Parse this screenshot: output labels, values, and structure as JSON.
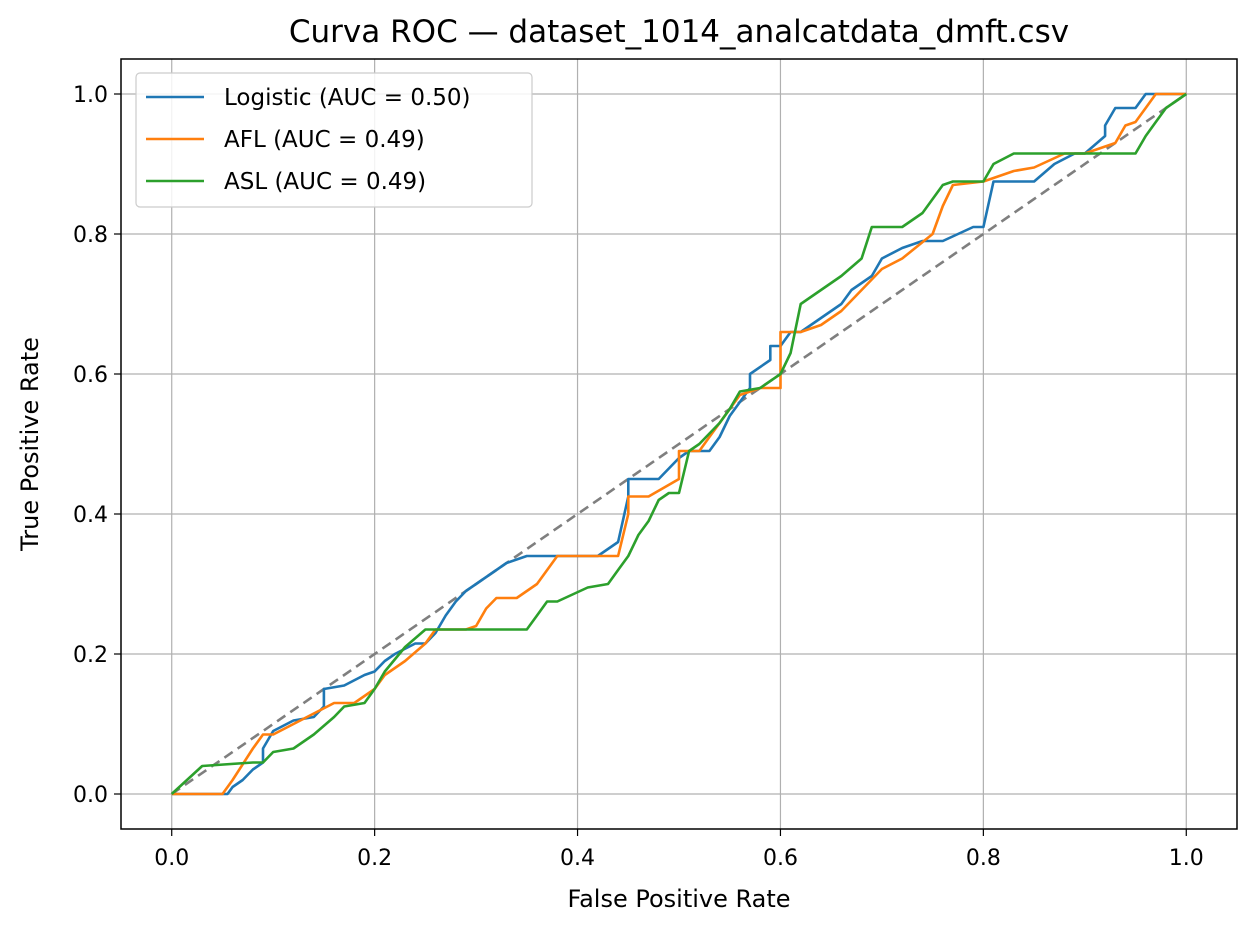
{
  "chart_data": {
    "type": "line",
    "title": "Curva ROC — dataset_1014_analcatdata_dmft.csv",
    "xlabel": "False Positive Rate",
    "ylabel": "True Positive Rate",
    "xlim": [
      -0.05,
      1.05
    ],
    "ylim": [
      -0.05,
      1.05
    ],
    "xticks": [
      "0.0",
      "0.2",
      "0.4",
      "0.6",
      "0.8",
      "1.0"
    ],
    "yticks": [
      "0.0",
      "0.2",
      "0.4",
      "0.6",
      "0.8",
      "1.0"
    ],
    "grid": true,
    "legend_position": "upper-left",
    "diagonal": {
      "x": [
        0,
        1
      ],
      "y": [
        0,
        1
      ],
      "style": "dashed",
      "color": "#7f7f7f"
    },
    "series": [
      {
        "name": "Logistic (AUC = 0.50)",
        "color": "#1f77b4",
        "x": [
          0,
          0.055,
          0.06,
          0.07,
          0.08,
          0.09,
          0.09,
          0.1,
          0.12,
          0.14,
          0.15,
          0.15,
          0.17,
          0.19,
          0.2,
          0.21,
          0.22,
          0.24,
          0.25,
          0.26,
          0.27,
          0.28,
          0.29,
          0.3,
          0.32,
          0.33,
          0.35,
          0.38,
          0.42,
          0.44,
          0.45,
          0.45,
          0.48,
          0.5,
          0.51,
          0.53,
          0.54,
          0.55,
          0.56,
          0.57,
          0.57,
          0.59,
          0.59,
          0.6,
          0.61,
          0.62,
          0.64,
          0.66,
          0.67,
          0.69,
          0.7,
          0.72,
          0.74,
          0.76,
          0.79,
          0.8,
          0.81,
          0.85,
          0.87,
          0.89,
          0.9,
          0.92,
          0.92,
          0.93,
          0.95,
          0.96,
          0.97,
          0.98,
          1.0
        ],
        "y": [
          0,
          0,
          0.01,
          0.02,
          0.035,
          0.045,
          0.065,
          0.09,
          0.105,
          0.11,
          0.125,
          0.15,
          0.155,
          0.17,
          0.175,
          0.19,
          0.2,
          0.215,
          0.215,
          0.23,
          0.255,
          0.275,
          0.29,
          0.3,
          0.32,
          0.33,
          0.34,
          0.34,
          0.34,
          0.36,
          0.425,
          0.45,
          0.45,
          0.48,
          0.49,
          0.49,
          0.51,
          0.54,
          0.56,
          0.58,
          0.6,
          0.62,
          0.64,
          0.64,
          0.66,
          0.66,
          0.68,
          0.7,
          0.72,
          0.74,
          0.765,
          0.78,
          0.79,
          0.79,
          0.81,
          0.81,
          0.875,
          0.875,
          0.9,
          0.915,
          0.915,
          0.94,
          0.955,
          0.98,
          0.98,
          1.0,
          1.0,
          1.0,
          1.0
        ]
      },
      {
        "name": "AFL (AUC = 0.49)",
        "color": "#ff7f0e",
        "x": [
          0,
          0.05,
          0.06,
          0.08,
          0.09,
          0.1,
          0.12,
          0.14,
          0.16,
          0.18,
          0.2,
          0.21,
          0.23,
          0.25,
          0.26,
          0.29,
          0.3,
          0.31,
          0.32,
          0.34,
          0.36,
          0.38,
          0.44,
          0.45,
          0.45,
          0.47,
          0.5,
          0.5,
          0.52,
          0.53,
          0.54,
          0.56,
          0.58,
          0.6,
          0.6,
          0.62,
          0.64,
          0.66,
          0.68,
          0.7,
          0.72,
          0.75,
          0.76,
          0.77,
          0.8,
          0.83,
          0.85,
          0.88,
          0.9,
          0.93,
          0.94,
          0.95,
          0.96,
          0.97,
          1.0
        ],
        "y": [
          0,
          0,
          0.02,
          0.065,
          0.085,
          0.085,
          0.1,
          0.115,
          0.13,
          0.13,
          0.15,
          0.17,
          0.19,
          0.215,
          0.235,
          0.235,
          0.24,
          0.265,
          0.28,
          0.28,
          0.3,
          0.34,
          0.34,
          0.4,
          0.425,
          0.425,
          0.45,
          0.49,
          0.49,
          0.51,
          0.53,
          0.57,
          0.58,
          0.58,
          0.66,
          0.66,
          0.67,
          0.69,
          0.72,
          0.75,
          0.765,
          0.8,
          0.84,
          0.87,
          0.875,
          0.89,
          0.895,
          0.915,
          0.915,
          0.93,
          0.955,
          0.96,
          0.98,
          1.0,
          1.0
        ]
      },
      {
        "name": "ASL (AUC = 0.49)",
        "color": "#2ca02c",
        "x": [
          0,
          0.03,
          0.08,
          0.09,
          0.1,
          0.12,
          0.14,
          0.16,
          0.17,
          0.19,
          0.2,
          0.21,
          0.23,
          0.25,
          0.27,
          0.3,
          0.35,
          0.36,
          0.37,
          0.38,
          0.41,
          0.43,
          0.44,
          0.45,
          0.46,
          0.47,
          0.48,
          0.49,
          0.5,
          0.51,
          0.52,
          0.54,
          0.55,
          0.56,
          0.58,
          0.6,
          0.61,
          0.62,
          0.64,
          0.66,
          0.68,
          0.69,
          0.72,
          0.74,
          0.76,
          0.77,
          0.8,
          0.81,
          0.83,
          0.86,
          0.9,
          0.95,
          0.96,
          0.97,
          0.98,
          1.0
        ],
        "y": [
          0,
          0.04,
          0.045,
          0.045,
          0.06,
          0.065,
          0.085,
          0.11,
          0.125,
          0.13,
          0.15,
          0.175,
          0.21,
          0.235,
          0.235,
          0.235,
          0.235,
          0.255,
          0.275,
          0.275,
          0.295,
          0.3,
          0.32,
          0.34,
          0.37,
          0.39,
          0.42,
          0.43,
          0.43,
          0.49,
          0.5,
          0.53,
          0.55,
          0.575,
          0.58,
          0.6,
          0.63,
          0.7,
          0.72,
          0.74,
          0.765,
          0.81,
          0.81,
          0.83,
          0.87,
          0.875,
          0.875,
          0.9,
          0.915,
          0.915,
          0.915,
          0.915,
          0.94,
          0.96,
          0.98,
          1.0
        ]
      }
    ]
  }
}
